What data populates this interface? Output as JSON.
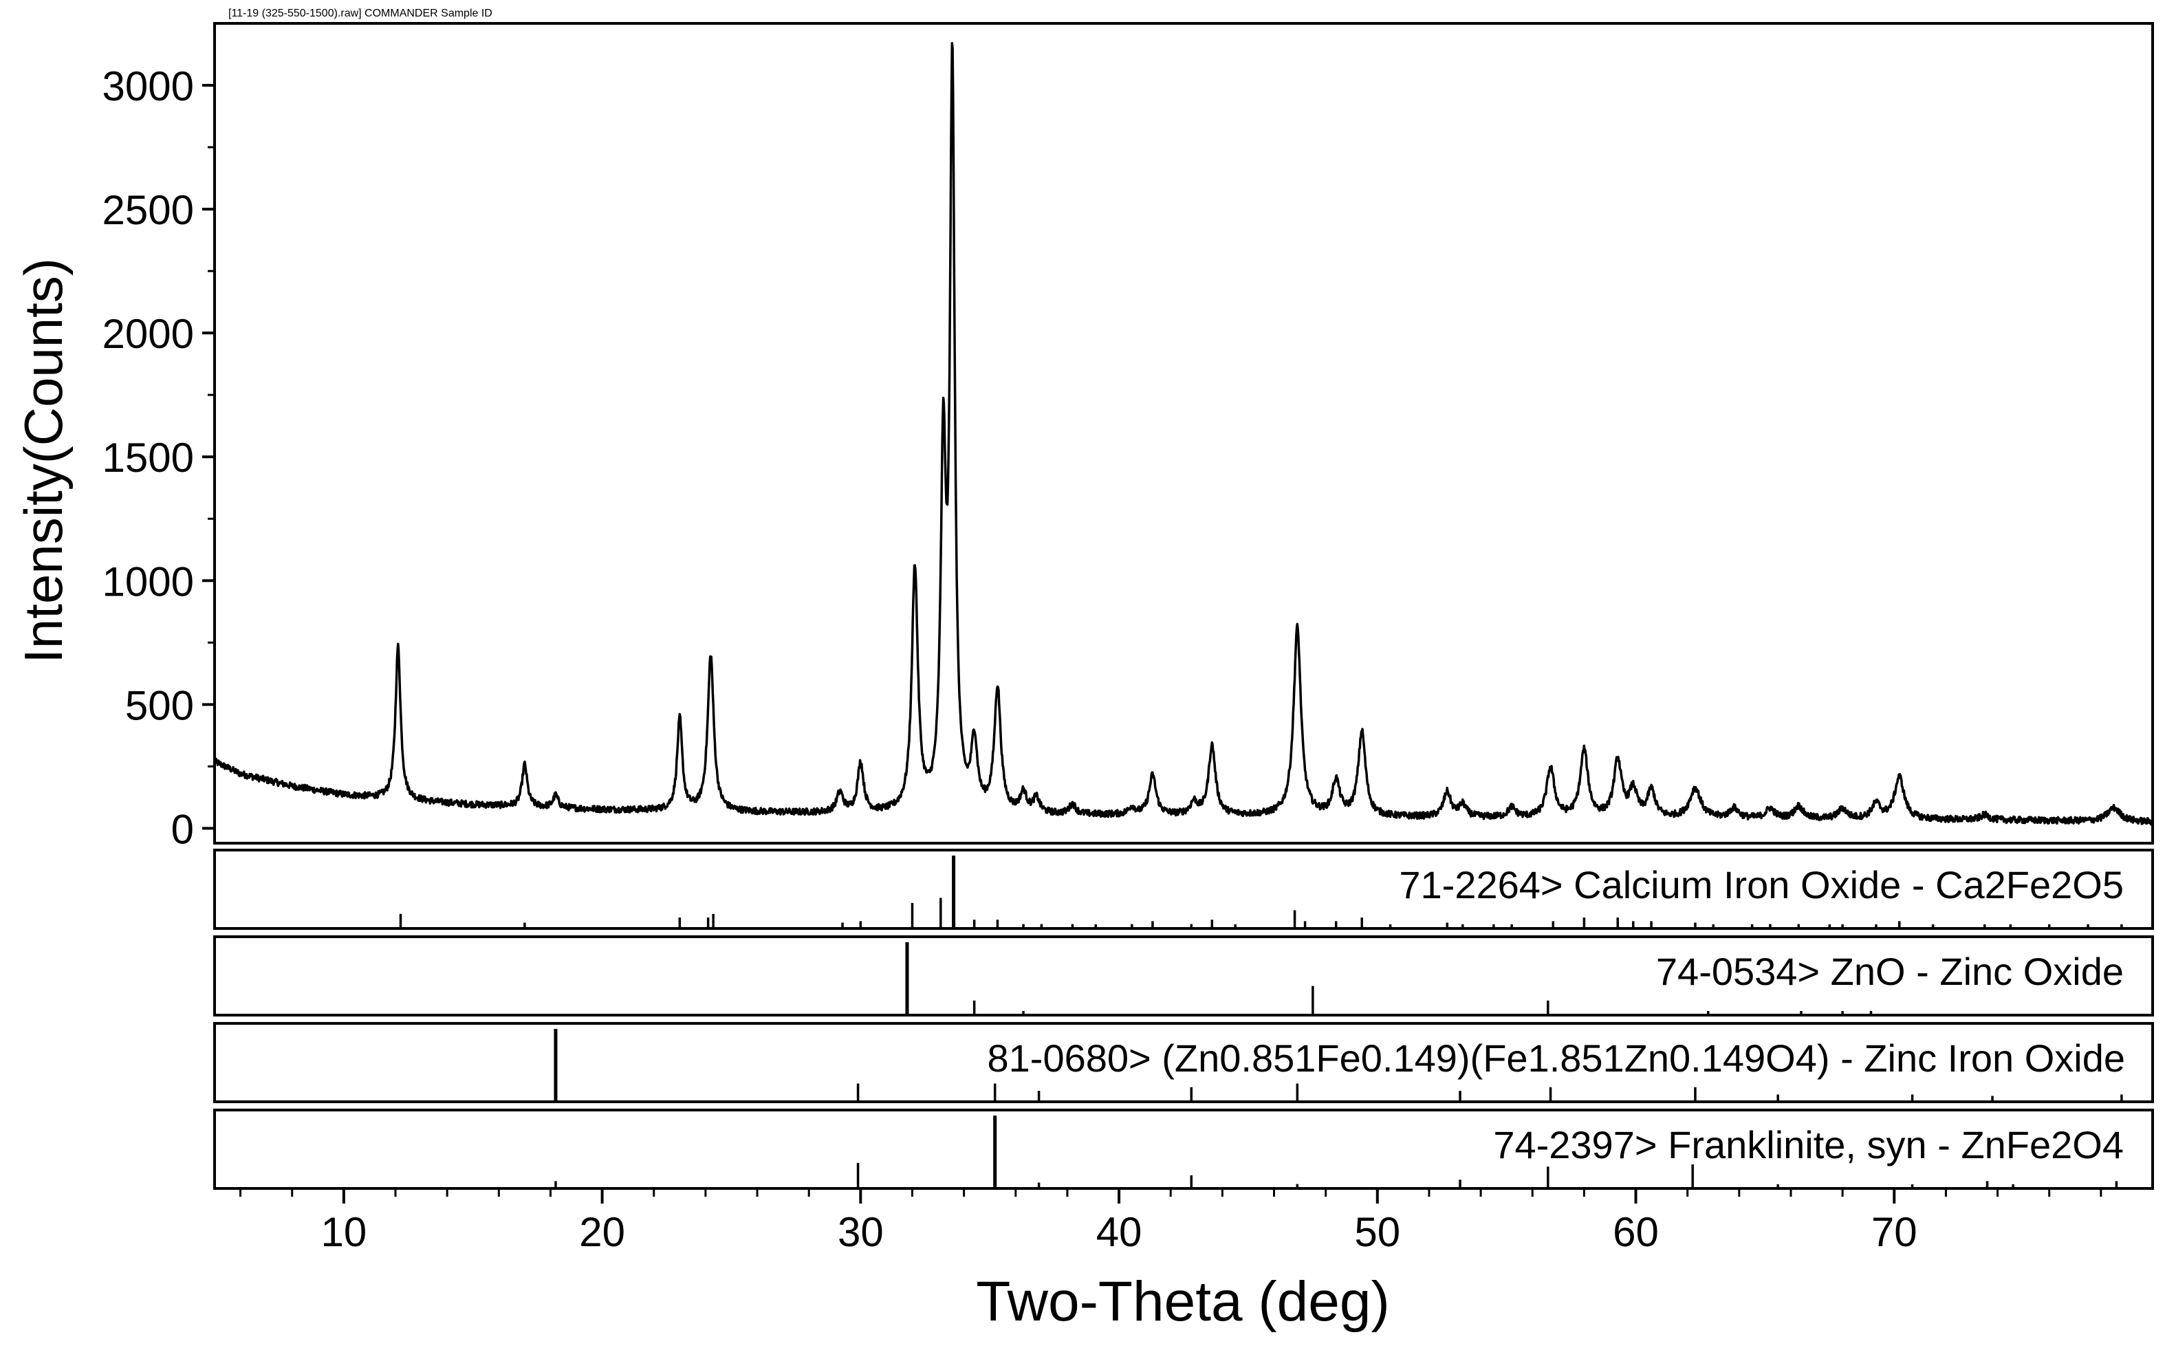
{
  "chart_data": {
    "type": "line",
    "header_text": "[11-19 (325-550-1500).raw] COMMANDER Sample ID",
    "ylabel": "Intensity(Counts)",
    "xlabel": "Two-Theta (deg)",
    "xlim": [
      5,
      80
    ],
    "ylim": [
      -60,
      3250
    ],
    "x_ticks": [
      10,
      20,
      30,
      40,
      50,
      60,
      70
    ],
    "y_ticks": [
      0,
      500,
      1000,
      1500,
      2000,
      2500,
      3000
    ],
    "grid": false,
    "pattern": {
      "background": [
        [
          5,
          270
        ],
        [
          6,
          220
        ],
        [
          8,
          170
        ],
        [
          10,
          135
        ],
        [
          12,
          115
        ],
        [
          15,
          95
        ],
        [
          20,
          75
        ],
        [
          25,
          65
        ],
        [
          30,
          58
        ],
        [
          33,
          55
        ],
        [
          40,
          52
        ],
        [
          45,
          50
        ],
        [
          50,
          45
        ],
        [
          55,
          42
        ],
        [
          60,
          40
        ],
        [
          65,
          38
        ],
        [
          70,
          36
        ],
        [
          75,
          32
        ],
        [
          80,
          25
        ]
      ],
      "peaks": [
        [
          12.1,
          620,
          0.12
        ],
        [
          17.0,
          170,
          0.12
        ],
        [
          18.2,
          50,
          0.12
        ],
        [
          23.0,
          370,
          0.12
        ],
        [
          24.2,
          630,
          0.14
        ],
        [
          29.2,
          80,
          0.15
        ],
        [
          30.0,
          200,
          0.14
        ],
        [
          32.1,
          980,
          0.14
        ],
        [
          33.2,
          1380,
          0.12
        ],
        [
          33.55,
          2970,
          0.11
        ],
        [
          34.4,
          270,
          0.14
        ],
        [
          35.3,
          500,
          0.15
        ],
        [
          36.3,
          80,
          0.15
        ],
        [
          36.8,
          60,
          0.15
        ],
        [
          38.2,
          40,
          0.15
        ],
        [
          40.5,
          30,
          0.15
        ],
        [
          41.3,
          160,
          0.16
        ],
        [
          42.9,
          50,
          0.16
        ],
        [
          43.6,
          280,
          0.16
        ],
        [
          46.9,
          760,
          0.17
        ],
        [
          48.4,
          140,
          0.17
        ],
        [
          49.4,
          340,
          0.17
        ],
        [
          52.7,
          100,
          0.17
        ],
        [
          53.3,
          50,
          0.17
        ],
        [
          55.2,
          40,
          0.17
        ],
        [
          56.7,
          200,
          0.18
        ],
        [
          58.0,
          270,
          0.18
        ],
        [
          59.3,
          230,
          0.18
        ],
        [
          59.9,
          110,
          0.18
        ],
        [
          60.6,
          110,
          0.18
        ],
        [
          62.3,
          120,
          0.25
        ],
        [
          63.8,
          40,
          0.2
        ],
        [
          65.2,
          40,
          0.2
        ],
        [
          66.3,
          50,
          0.2
        ],
        [
          68.0,
          40,
          0.2
        ],
        [
          69.3,
          60,
          0.2
        ],
        [
          70.2,
          170,
          0.22
        ],
        [
          73.5,
          20,
          0.2
        ],
        [
          78.5,
          55,
          0.3
        ]
      ]
    },
    "references": [
      {
        "name": "71-2264> Calcium Iron Oxide - Ca2Fe2O5",
        "lines": [
          [
            12.2,
            0.2
          ],
          [
            17.0,
            0.08
          ],
          [
            23.0,
            0.15
          ],
          [
            24.1,
            0.15
          ],
          [
            24.3,
            0.2
          ],
          [
            29.3,
            0.08
          ],
          [
            30.0,
            0.1
          ],
          [
            32.0,
            0.35
          ],
          [
            33.1,
            0.42
          ],
          [
            33.6,
            1.0
          ],
          [
            34.4,
            0.12
          ],
          [
            35.3,
            0.12
          ],
          [
            36.3,
            0.06
          ],
          [
            37.0,
            0.06
          ],
          [
            38.2,
            0.06
          ],
          [
            39.1,
            0.05
          ],
          [
            40.5,
            0.06
          ],
          [
            41.3,
            0.1
          ],
          [
            42.8,
            0.06
          ],
          [
            43.6,
            0.12
          ],
          [
            44.5,
            0.05
          ],
          [
            46.8,
            0.25
          ],
          [
            47.2,
            0.1
          ],
          [
            48.4,
            0.1
          ],
          [
            49.4,
            0.15
          ],
          [
            50.5,
            0.05
          ],
          [
            52.7,
            0.08
          ],
          [
            53.3,
            0.05
          ],
          [
            54.5,
            0.05
          ],
          [
            55.2,
            0.05
          ],
          [
            56.8,
            0.1
          ],
          [
            58.0,
            0.15
          ],
          [
            59.3,
            0.15
          ],
          [
            59.9,
            0.1
          ],
          [
            60.6,
            0.1
          ],
          [
            62.3,
            0.08
          ],
          [
            63.0,
            0.05
          ],
          [
            64.5,
            0.05
          ],
          [
            65.2,
            0.06
          ],
          [
            66.3,
            0.06
          ],
          [
            67.5,
            0.05
          ],
          [
            68.0,
            0.05
          ],
          [
            69.3,
            0.05
          ],
          [
            70.2,
            0.1
          ],
          [
            71.5,
            0.05
          ],
          [
            73.5,
            0.05
          ],
          [
            74.5,
            0.05
          ],
          [
            76.0,
            0.05
          ],
          [
            77.5,
            0.05
          ],
          [
            78.8,
            0.05
          ]
        ]
      },
      {
        "name": "74-0534> ZnO - Zinc Oxide",
        "lines": [
          [
            31.8,
            1.0
          ],
          [
            34.4,
            0.2
          ],
          [
            36.3,
            0.05
          ],
          [
            47.5,
            0.4
          ],
          [
            56.6,
            0.2
          ],
          [
            62.8,
            0.05
          ],
          [
            66.4,
            0.05
          ],
          [
            68.0,
            0.05
          ],
          [
            69.1,
            0.05
          ]
        ]
      },
      {
        "name": "81-0680> (Zn0.851Fe0.149)(Fe1.851Zn0.149O4) - Zinc Iron Oxide",
        "lines": [
          [
            18.2,
            1.0
          ],
          [
            29.9,
            0.25
          ],
          [
            35.2,
            0.25
          ],
          [
            36.9,
            0.15
          ],
          [
            42.8,
            0.2
          ],
          [
            46.9,
            0.25
          ],
          [
            53.2,
            0.15
          ],
          [
            56.7,
            0.2
          ],
          [
            62.3,
            0.2
          ],
          [
            65.5,
            0.1
          ],
          [
            70.7,
            0.1
          ],
          [
            73.8,
            0.08
          ],
          [
            78.8,
            0.1
          ]
        ]
      },
      {
        "name": "74-2397> Franklinite, syn - ZnFe2O4",
        "lines": [
          [
            18.2,
            0.1
          ],
          [
            29.9,
            0.35
          ],
          [
            35.2,
            1.0
          ],
          [
            36.9,
            0.08
          ],
          [
            42.8,
            0.18
          ],
          [
            46.9,
            0.06
          ],
          [
            53.2,
            0.12
          ],
          [
            56.6,
            0.3
          ],
          [
            62.2,
            0.33
          ],
          [
            65.5,
            0.05
          ],
          [
            70.7,
            0.05
          ],
          [
            73.6,
            0.1
          ],
          [
            74.6,
            0.05
          ],
          [
            78.6,
            0.1
          ]
        ]
      }
    ]
  }
}
